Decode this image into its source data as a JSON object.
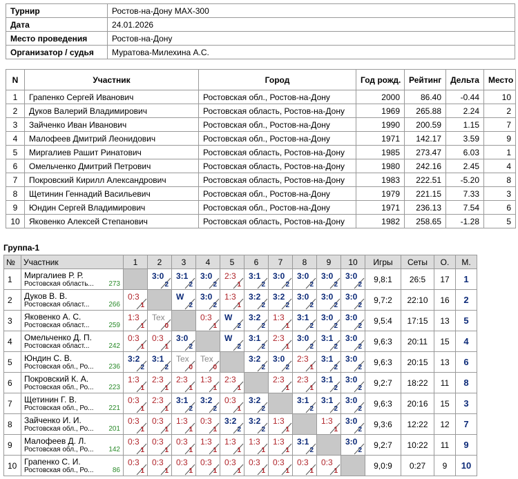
{
  "info": {
    "rows": [
      [
        "Турнир",
        "Ростов-на-Дону MAX-300"
      ],
      [
        "Дата",
        "24.01.2026"
      ],
      [
        "Место проведения",
        "Ростов-на-Дону"
      ],
      [
        "Организатор / судья",
        "Муратова-Милехина А.С."
      ]
    ]
  },
  "participants": {
    "headers": [
      "N",
      "Участник",
      "Город",
      "Год рожд.",
      "Рейтинг",
      "Дельта",
      "Место"
    ],
    "rows": [
      [
        "1",
        "Грапенко Сергей Иванович",
        "Ростовская обл., Ростов-на-Дону",
        "2000",
        "86.40",
        "-0.44",
        "10"
      ],
      [
        "2",
        "Дуков Валерий Владимирович",
        "Ростовская область, Ростов-на-Дону",
        "1969",
        "265.88",
        "2.24",
        "2"
      ],
      [
        "3",
        "Зайченко Иван Иванович",
        "Ростовская обл., Ростов-на-Дону",
        "1990",
        "200.59",
        "1.15",
        "7"
      ],
      [
        "4",
        "Малофеев Дмитрий Леонидович",
        "Ростовская обл., Ростов-на-Дону",
        "1971",
        "142.17",
        "3.59",
        "9"
      ],
      [
        "5",
        "Миргалиев Рашит Ринатович",
        "Ростовская область, Ростов-на-Дону",
        "1985",
        "273.47",
        "6.03",
        "1"
      ],
      [
        "6",
        "Омельченко Дмитрий Петрович",
        "Ростовская область, Ростов-на-Дону",
        "1980",
        "242.16",
        "2.45",
        "4"
      ],
      [
        "7",
        "Покровский Кирилл Александрович",
        "Ростовская область, Ростов-на-Дону",
        "1983",
        "222.51",
        "-5.20",
        "8"
      ],
      [
        "8",
        "Щетинин Геннадий Васильевич",
        "Ростовская обл., Ростов-на-Дону",
        "1979",
        "221.15",
        "7.33",
        "3"
      ],
      [
        "9",
        "Юндин Сергей Владимирович",
        "Ростовская обл., Ростов-на-Дону",
        "1971",
        "236.13",
        "7.54",
        "6"
      ],
      [
        "10",
        "Яковенко Алексей Степанович",
        "Ростовская область, Ростов-на-Дону",
        "1982",
        "258.65",
        "-1.28",
        "5"
      ]
    ]
  },
  "group": {
    "title": "Группа-1",
    "headers": [
      "№",
      "Участник",
      "1",
      "2",
      "3",
      "4",
      "5",
      "6",
      "7",
      "8",
      "9",
      "10",
      "Игры",
      "Сеты",
      "О.",
      "М."
    ],
    "rows": [
      {
        "n": "1",
        "name": "Миргалиев Р. Р.",
        "city": "Ростовская область...",
        "rating": "273",
        "results": [
          null,
          {
            "score": "3:0",
            "pts": "2"
          },
          {
            "score": "3:1",
            "pts": "2"
          },
          {
            "score": "3:0",
            "pts": "2"
          },
          {
            "score": "2:3",
            "pts": "1"
          },
          {
            "score": "3:1",
            "pts": "2"
          },
          {
            "score": "3:0",
            "pts": "2"
          },
          {
            "score": "3:0",
            "pts": "2"
          },
          {
            "score": "3:0",
            "pts": "2"
          },
          {
            "score": "3:0",
            "pts": "2"
          }
        ],
        "games": "9,8:1",
        "sets": "26:5",
        "points": "17",
        "place": "1"
      },
      {
        "n": "2",
        "name": "Дуков В. В.",
        "city": "Ростовская област...",
        "rating": "266",
        "results": [
          {
            "score": "0:3",
            "pts": "1"
          },
          null,
          {
            "score": "W",
            "pts": "2"
          },
          {
            "score": "3:0",
            "pts": "2"
          },
          {
            "score": "1:3",
            "pts": "1"
          },
          {
            "score": "3:2",
            "pts": "2"
          },
          {
            "score": "3:2",
            "pts": "2"
          },
          {
            "score": "3:0",
            "pts": "2"
          },
          {
            "score": "3:0",
            "pts": "2"
          },
          {
            "score": "3:0",
            "pts": "2"
          }
        ],
        "games": "9,7:2",
        "sets": "22:10",
        "points": "16",
        "place": "2"
      },
      {
        "n": "3",
        "name": "Яковенко А. С.",
        "city": "Ростовская област...",
        "rating": "259",
        "results": [
          {
            "score": "1:3",
            "pts": "1"
          },
          {
            "score": "Tex",
            "pts": "0"
          },
          null,
          {
            "score": "0:3",
            "pts": "1"
          },
          {
            "score": "W",
            "pts": "2"
          },
          {
            "score": "3:2",
            "pts": "2"
          },
          {
            "score": "1:3",
            "pts": "1"
          },
          {
            "score": "3:1",
            "pts": "2"
          },
          {
            "score": "3:0",
            "pts": "2"
          },
          {
            "score": "3:0",
            "pts": "2"
          }
        ],
        "games": "9,5:4",
        "sets": "17:15",
        "points": "13",
        "place": "5"
      },
      {
        "n": "4",
        "name": "Омельченко Д. П.",
        "city": "Ростовская област...",
        "rating": "242",
        "results": [
          {
            "score": "0:3",
            "pts": "1"
          },
          {
            "score": "0:3",
            "pts": "1"
          },
          {
            "score": "3:0",
            "pts": "2"
          },
          null,
          {
            "score": "W",
            "pts": "2"
          },
          {
            "score": "3:1",
            "pts": "2"
          },
          {
            "score": "2:3",
            "pts": "1"
          },
          {
            "score": "3:0",
            "pts": "2"
          },
          {
            "score": "3:1",
            "pts": "2"
          },
          {
            "score": "3:0",
            "pts": "2"
          }
        ],
        "games": "9,6:3",
        "sets": "20:11",
        "points": "15",
        "place": "4"
      },
      {
        "n": "5",
        "name": "Юндин С. В.",
        "city": "Ростовская обл., Ро...",
        "rating": "236",
        "results": [
          {
            "score": "3:2",
            "pts": "2"
          },
          {
            "score": "3:1",
            "pts": "2"
          },
          {
            "score": "Tex",
            "pts": "0"
          },
          {
            "score": "Tex",
            "pts": "0"
          },
          null,
          {
            "score": "3:2",
            "pts": "2"
          },
          {
            "score": "3:0",
            "pts": "2"
          },
          {
            "score": "2:3",
            "pts": "1"
          },
          {
            "score": "3:1",
            "pts": "2"
          },
          {
            "score": "3:0",
            "pts": "2"
          }
        ],
        "games": "9,6:3",
        "sets": "20:15",
        "points": "13",
        "place": "6"
      },
      {
        "n": "6",
        "name": "Покровский К. А.",
        "city": "Ростовская обл., Ро...",
        "rating": "223",
        "results": [
          {
            "score": "1:3",
            "pts": "1"
          },
          {
            "score": "2:3",
            "pts": "1"
          },
          {
            "score": "2:3",
            "pts": "1"
          },
          {
            "score": "1:3",
            "pts": "1"
          },
          {
            "score": "2:3",
            "pts": "1"
          },
          null,
          {
            "score": "2:3",
            "pts": "1"
          },
          {
            "score": "2:3",
            "pts": "1"
          },
          {
            "score": "3:1",
            "pts": "2"
          },
          {
            "score": "3:0",
            "pts": "2"
          }
        ],
        "games": "9,2:7",
        "sets": "18:22",
        "points": "11",
        "place": "8"
      },
      {
        "n": "7",
        "name": "Щетинин Г. В.",
        "city": "Ростовская обл., Ро...",
        "rating": "221",
        "results": [
          {
            "score": "0:3",
            "pts": "1"
          },
          {
            "score": "2:3",
            "pts": "1"
          },
          {
            "score": "3:1",
            "pts": "2"
          },
          {
            "score": "3:2",
            "pts": "2"
          },
          {
            "score": "0:3",
            "pts": "1"
          },
          {
            "score": "3:2",
            "pts": "2"
          },
          null,
          {
            "score": "3:1",
            "pts": "2"
          },
          {
            "score": "3:1",
            "pts": "2"
          },
          {
            "score": "3:0",
            "pts": "2"
          }
        ],
        "games": "9,6:3",
        "sets": "20:16",
        "points": "15",
        "place": "3"
      },
      {
        "n": "8",
        "name": "Зайченко И. И.",
        "city": "Ростовская обл., Ро...",
        "rating": "201",
        "results": [
          {
            "score": "0:3",
            "pts": "1"
          },
          {
            "score": "0:3",
            "pts": "1"
          },
          {
            "score": "1:3",
            "pts": "1"
          },
          {
            "score": "0:3",
            "pts": "1"
          },
          {
            "score": "3:2",
            "pts": "2"
          },
          {
            "score": "3:2",
            "pts": "2"
          },
          {
            "score": "1:3",
            "pts": "1"
          },
          null,
          {
            "score": "1:3",
            "pts": "1"
          },
          {
            "score": "3:0",
            "pts": "2"
          }
        ],
        "games": "9,3:6",
        "sets": "12:22",
        "points": "12",
        "place": "7"
      },
      {
        "n": "9",
        "name": "Малофеев Д. Л.",
        "city": "Ростовская обл., Ро...",
        "rating": "142",
        "results": [
          {
            "score": "0:3",
            "pts": "1"
          },
          {
            "score": "0:3",
            "pts": "1"
          },
          {
            "score": "0:3",
            "pts": "1"
          },
          {
            "score": "1:3",
            "pts": "1"
          },
          {
            "score": "1:3",
            "pts": "1"
          },
          {
            "score": "1:3",
            "pts": "1"
          },
          {
            "score": "1:3",
            "pts": "1"
          },
          {
            "score": "3:1",
            "pts": "2"
          },
          null,
          {
            "score": "3:0",
            "pts": "2"
          }
        ],
        "games": "9,2:7",
        "sets": "10:22",
        "points": "11",
        "place": "9"
      },
      {
        "n": "10",
        "name": "Грапенко С. И.",
        "city": "Ростовская обл., Ро...",
        "rating": "86",
        "results": [
          {
            "score": "0:3",
            "pts": "1"
          },
          {
            "score": "0:3",
            "pts": "1"
          },
          {
            "score": "0:3",
            "pts": "1"
          },
          {
            "score": "0:3",
            "pts": "1"
          },
          {
            "score": "0:3",
            "pts": "1"
          },
          {
            "score": "0:3",
            "pts": "1"
          },
          {
            "score": "0:3",
            "pts": "1"
          },
          {
            "score": "0:3",
            "pts": "1"
          },
          {
            "score": "0:3",
            "pts": "1"
          },
          null
        ],
        "games": "9,0:9",
        "sets": "0:27",
        "points": "9",
        "place": "10"
      }
    ]
  }
}
